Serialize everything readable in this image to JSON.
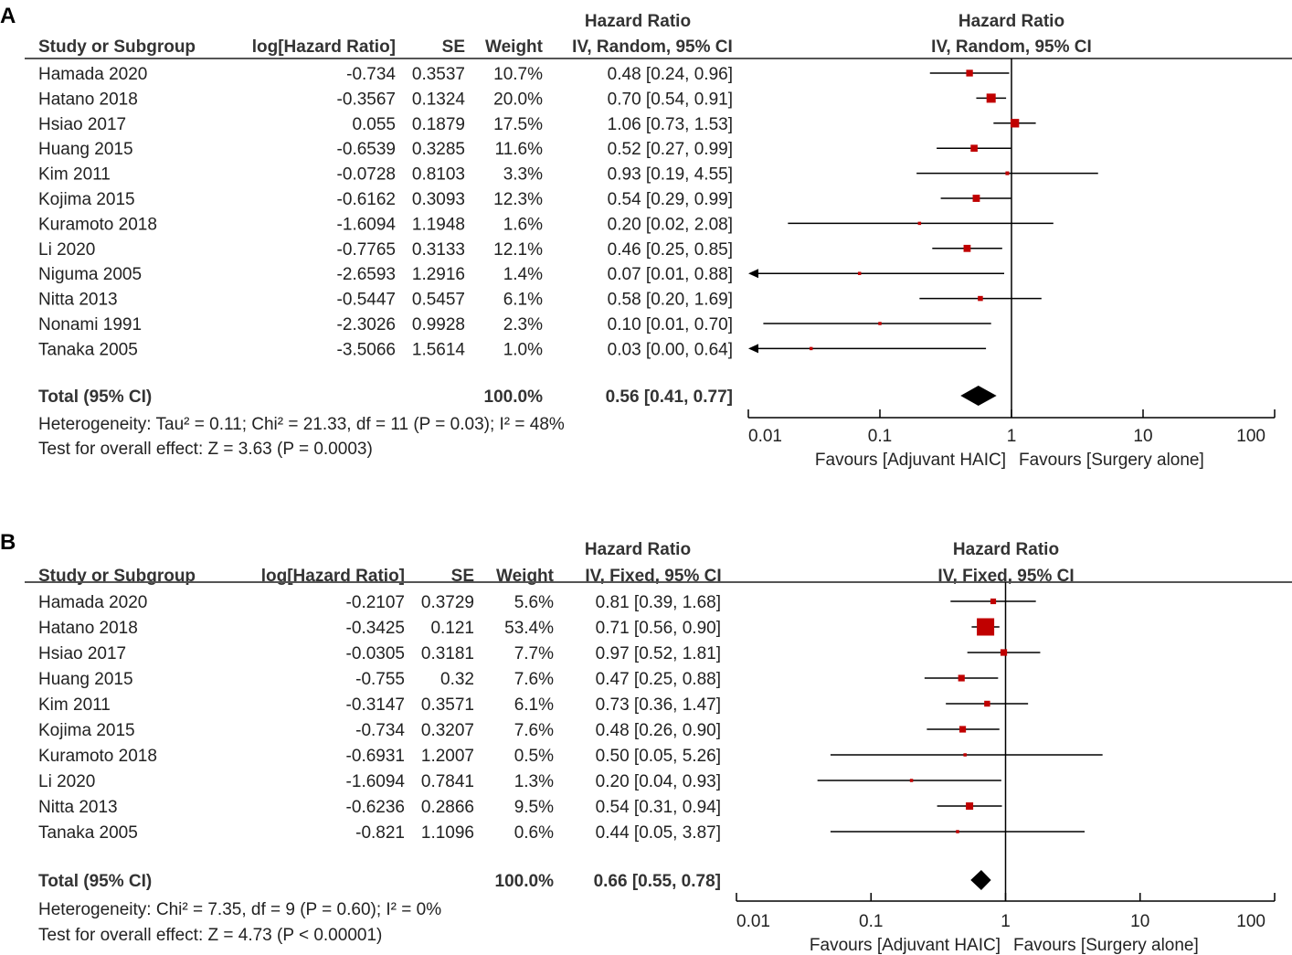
{
  "chart_data": [
    {
      "type": "forest",
      "panel_label": "A",
      "headers": {
        "study": "Study or Subgroup",
        "loghr": "log[Hazard Ratio]",
        "se": "SE",
        "weight": "Weight",
        "hr_title": "Hazard Ratio",
        "hr_method": "IV, Random, 95% CI",
        "plot_title": "Hazard Ratio",
        "plot_method": "IV, Random, 95% CI"
      },
      "studies": [
        {
          "name": "Hamada 2020",
          "loghr": "-0.734",
          "se": "0.3537",
          "weight": "10.7%",
          "ci_text": "0.48 [0.24, 0.96]",
          "hr": 0.48,
          "lo": 0.24,
          "hi": 0.96,
          "w": 10.7
        },
        {
          "name": "Hatano 2018",
          "loghr": "-0.3567",
          "se": "0.1324",
          "weight": "20.0%",
          "ci_text": "0.70 [0.54, 0.91]",
          "hr": 0.7,
          "lo": 0.54,
          "hi": 0.91,
          "w": 20.0
        },
        {
          "name": "Hsiao 2017",
          "loghr": "0.055",
          "se": "0.1879",
          "weight": "17.5%",
          "ci_text": "1.06 [0.73, 1.53]",
          "hr": 1.06,
          "lo": 0.73,
          "hi": 1.53,
          "w": 17.5
        },
        {
          "name": "Huang 2015",
          "loghr": "-0.6539",
          "se": "0.3285",
          "weight": "11.6%",
          "ci_text": "0.52 [0.27, 0.99]",
          "hr": 0.52,
          "lo": 0.27,
          "hi": 0.99,
          "w": 11.6
        },
        {
          "name": "Kim 2011",
          "loghr": "-0.0728",
          "se": "0.8103",
          "weight": "3.3%",
          "ci_text": "0.93 [0.19, 4.55]",
          "hr": 0.93,
          "lo": 0.19,
          "hi": 4.55,
          "w": 3.3
        },
        {
          "name": "Kojima 2015",
          "loghr": "-0.6162",
          "se": "0.3093",
          "weight": "12.3%",
          "ci_text": "0.54 [0.29, 0.99]",
          "hr": 0.54,
          "lo": 0.29,
          "hi": 0.99,
          "w": 12.3
        },
        {
          "name": "Kuramoto 2018",
          "loghr": "-1.6094",
          "se": "1.1948",
          "weight": "1.6%",
          "ci_text": "0.20 [0.02, 2.08]",
          "hr": 0.2,
          "lo": 0.02,
          "hi": 2.08,
          "w": 1.6
        },
        {
          "name": "Li 2020",
          "loghr": "-0.7765",
          "se": "0.3133",
          "weight": "12.1%",
          "ci_text": "0.46 [0.25, 0.85]",
          "hr": 0.46,
          "lo": 0.25,
          "hi": 0.85,
          "w": 12.1
        },
        {
          "name": "Niguma 2005",
          "loghr": "-2.6593",
          "se": "1.2916",
          "weight": "1.4%",
          "ci_text": "0.07 [0.01, 0.88]",
          "hr": 0.07,
          "lo": 0.01,
          "hi": 0.88,
          "w": 1.4,
          "arrow_left": true
        },
        {
          "name": "Nitta 2013",
          "loghr": "-0.5447",
          "se": "0.5457",
          "weight": "6.1%",
          "ci_text": "0.58 [0.20, 1.69]",
          "hr": 0.58,
          "lo": 0.2,
          "hi": 1.69,
          "w": 6.1
        },
        {
          "name": "Nonami 1991",
          "loghr": "-2.3026",
          "se": "0.9928",
          "weight": "2.3%",
          "ci_text": "0.10 [0.01, 0.70]",
          "hr": 0.1,
          "lo": 0.013,
          "hi": 0.7,
          "w": 2.3
        },
        {
          "name": "Tanaka 2005",
          "loghr": "-3.5066",
          "se": "1.5614",
          "weight": "1.0%",
          "ci_text": "0.03 [0.00, 0.64]",
          "hr": 0.03,
          "lo": 0.001,
          "hi": 0.64,
          "w": 1.0,
          "arrow_left": true
        }
      ],
      "total": {
        "label": "Total (95% CI)",
        "weight": "100.0%",
        "ci_text": "0.56 [0.41, 0.77]",
        "hr": 0.56,
        "lo": 0.41,
        "hi": 0.77
      },
      "heterogeneity": "Heterogeneity: Tau² = 0.11; Chi² = 21.33, df = 11 (P = 0.03); I² = 48%",
      "overall_effect": "Test for overall effect: Z = 3.63 (P = 0.0003)",
      "axis": {
        "ticks": [
          0.01,
          0.1,
          1,
          10,
          100
        ],
        "tick_labels": [
          "0.01",
          "0.1",
          "1",
          "10",
          "100"
        ],
        "xlim": [
          0.01,
          100
        ],
        "scale": "log"
      },
      "favours_left": "Favours [Adjuvant HAIC]",
      "favours_right": "Favours [Surgery alone]",
      "colors": {
        "marker": "#c00000",
        "line": "#000000",
        "diamond": "#000000"
      }
    },
    {
      "type": "forest",
      "panel_label": "B",
      "headers": {
        "study": "Study or Subgroup",
        "loghr": "log[Hazard Ratio]",
        "se": "SE",
        "weight": "Weight",
        "hr_title": "Hazard Ratio",
        "hr_method": "IV, Fixed, 95% CI",
        "plot_title": "Hazard Ratio",
        "plot_method": "IV, Fixed, 95% CI"
      },
      "studies": [
        {
          "name": "Hamada 2020",
          "loghr": "-0.2107",
          "se": "0.3729",
          "weight": "5.6%",
          "ci_text": "0.81 [0.39, 1.68]",
          "hr": 0.81,
          "lo": 0.39,
          "hi": 1.68,
          "w": 5.6
        },
        {
          "name": "Hatano 2018",
          "loghr": "-0.3425",
          "se": "0.121",
          "weight": "53.4%",
          "ci_text": "0.71 [0.56, 0.90]",
          "hr": 0.71,
          "lo": 0.56,
          "hi": 0.9,
          "w": 53.4
        },
        {
          "name": "Hsiao 2017",
          "loghr": "-0.0305",
          "se": "0.3181",
          "weight": "7.7%",
          "ci_text": "0.97 [0.52, 1.81]",
          "hr": 0.97,
          "lo": 0.52,
          "hi": 1.81,
          "w": 7.7
        },
        {
          "name": "Huang 2015",
          "loghr": "-0.755",
          "se": "0.32",
          "weight": "7.6%",
          "ci_text": "0.47 [0.25, 0.88]",
          "hr": 0.47,
          "lo": 0.25,
          "hi": 0.88,
          "w": 7.6
        },
        {
          "name": "Kim 2011",
          "loghr": "-0.3147",
          "se": "0.3571",
          "weight": "6.1%",
          "ci_text": "0.73 [0.36, 1.47]",
          "hr": 0.73,
          "lo": 0.36,
          "hi": 1.47,
          "w": 6.1
        },
        {
          "name": "Kojima 2015",
          "loghr": "-0.734",
          "se": "0.3207",
          "weight": "7.6%",
          "ci_text": "0.48 [0.26, 0.90]",
          "hr": 0.48,
          "lo": 0.26,
          "hi": 0.9,
          "w": 7.6
        },
        {
          "name": "Kuramoto 2018",
          "loghr": "-0.6931",
          "se": "1.2007",
          "weight": "0.5%",
          "ci_text": "0.50 [0.05, 5.26]",
          "hr": 0.5,
          "lo": 0.05,
          "hi": 5.26,
          "w": 0.5
        },
        {
          "name": "Li 2020",
          "loghr": "-1.6094",
          "se": "0.7841",
          "weight": "1.3%",
          "ci_text": "0.20 [0.04, 0.93]",
          "hr": 0.2,
          "lo": 0.04,
          "hi": 0.93,
          "w": 1.3
        },
        {
          "name": "Nitta 2013",
          "loghr": "-0.6236",
          "se": "0.2866",
          "weight": "9.5%",
          "ci_text": "0.54 [0.31, 0.94]",
          "hr": 0.54,
          "lo": 0.31,
          "hi": 0.94,
          "w": 9.5
        },
        {
          "name": "Tanaka 2005",
          "loghr": "-0.821",
          "se": "1.1096",
          "weight": "0.6%",
          "ci_text": "0.44 [0.05, 3.87]",
          "hr": 0.44,
          "lo": 0.05,
          "hi": 3.87,
          "w": 0.6
        }
      ],
      "total": {
        "label": "Total (95% CI)",
        "weight": "100.0%",
        "ci_text": "0.66 [0.55, 0.78]",
        "hr": 0.66,
        "lo": 0.55,
        "hi": 0.78
      },
      "heterogeneity": "Heterogeneity: Chi² = 7.35, df = 9 (P = 0.60); I² = 0%",
      "overall_effect": "Test for overall effect: Z = 4.73 (P < 0.00001)",
      "axis": {
        "ticks": [
          0.01,
          0.1,
          1,
          10,
          100
        ],
        "tick_labels": [
          "0.01",
          "0.1",
          "1",
          "10",
          "100"
        ],
        "xlim": [
          0.01,
          100
        ],
        "scale": "log"
      },
      "favours_left": "Favours [Adjuvant HAIC]",
      "favours_right": "Favours [Surgery alone]",
      "colors": {
        "marker": "#c00000",
        "line": "#000000",
        "diamond": "#000000"
      }
    }
  ]
}
